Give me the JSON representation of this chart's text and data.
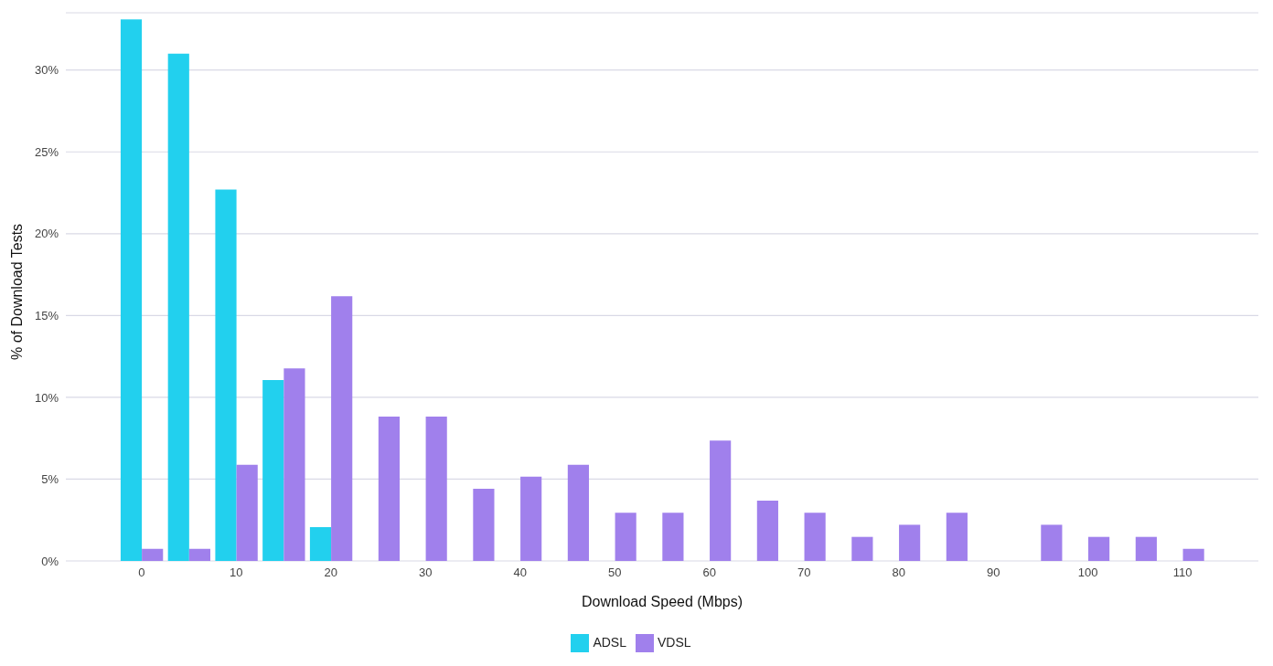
{
  "chart_data": {
    "type": "bar",
    "xlabel": "Download Speed (Mbps)",
    "ylabel": "% of Download Tests",
    "x": [
      0,
      5,
      10,
      15,
      20,
      25,
      30,
      35,
      40,
      45,
      50,
      55,
      60,
      65,
      70,
      75,
      80,
      85,
      90,
      95,
      100,
      105,
      110
    ],
    "series": [
      {
        "name": "ADSL",
        "color": "#22d0ee",
        "values": [
          33.1,
          31.0,
          22.7,
          11.06,
          2.06,
          0,
          0,
          0,
          0,
          0,
          0,
          0,
          0,
          0,
          0,
          0,
          0,
          0,
          0,
          0,
          0,
          0,
          0
        ]
      },
      {
        "name": "VDSL",
        "color": "#a080ec",
        "values": [
          0.74,
          0.74,
          5.88,
          11.76,
          16.18,
          8.82,
          8.82,
          4.41,
          5.15,
          5.88,
          2.94,
          2.94,
          7.35,
          3.68,
          2.94,
          1.47,
          2.21,
          2.94,
          0,
          2.21,
          1.47,
          1.47,
          0.74
        ]
      }
    ],
    "xlim": [
      -8,
      118
    ],
    "xticks": [
      0,
      10,
      20,
      30,
      40,
      50,
      60,
      70,
      80,
      90,
      100,
      110
    ],
    "ylim": [
      0,
      33.5
    ],
    "yticks": [
      {
        "value": 0,
        "label": "0%"
      },
      {
        "value": 5,
        "label": "5%"
      },
      {
        "value": 10,
        "label": "10%"
      },
      {
        "value": 15,
        "label": "15%"
      },
      {
        "value": 20,
        "label": "20%"
      },
      {
        "value": 25,
        "label": "25%"
      },
      {
        "value": 30,
        "label": "30%"
      }
    ],
    "grid": "y",
    "legend": "bottom"
  }
}
